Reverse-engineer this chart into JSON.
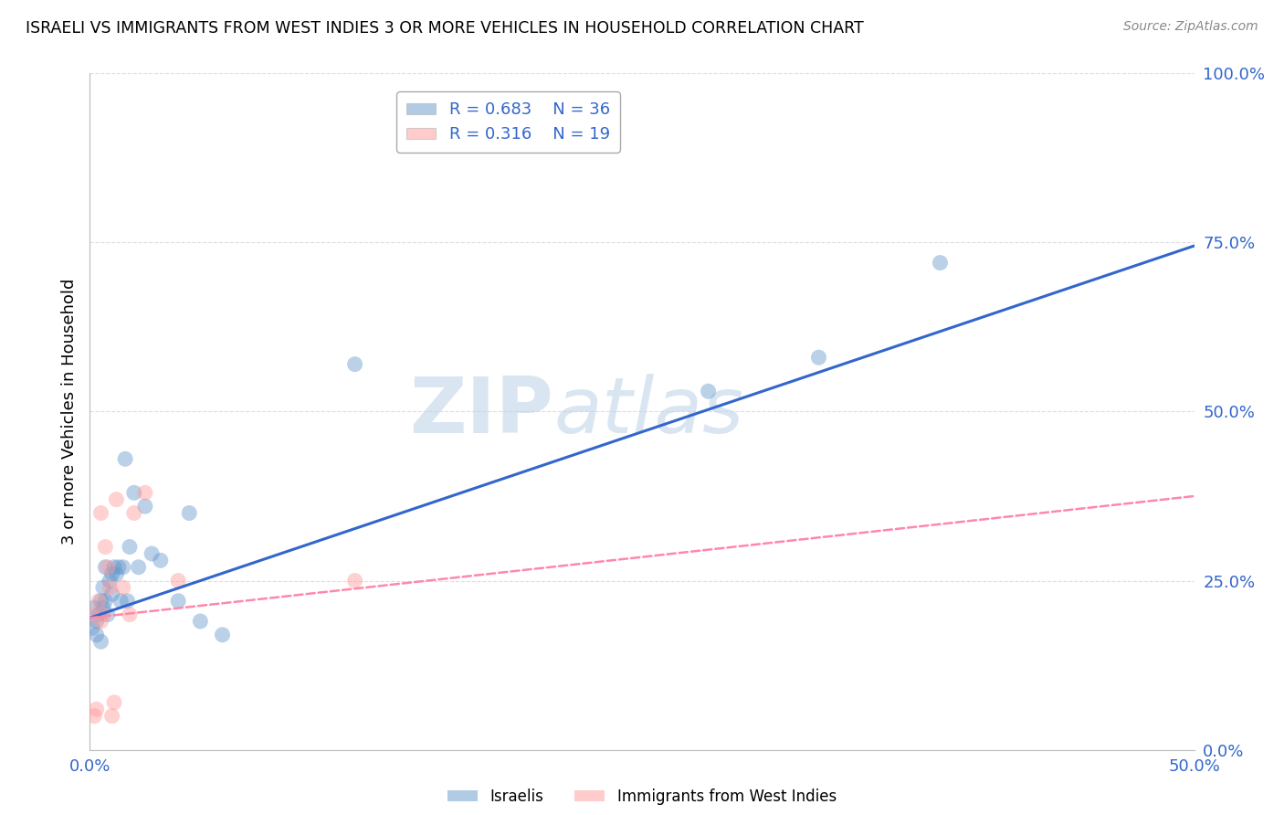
{
  "title": "ISRAELI VS IMMIGRANTS FROM WEST INDIES 3 OR MORE VEHICLES IN HOUSEHOLD CORRELATION CHART",
  "source": "Source: ZipAtlas.com",
  "ylabel": "3 or more Vehicles in Household",
  "xlim": [
    0.0,
    0.5
  ],
  "ylim": [
    0.0,
    1.0
  ],
  "xtick_labels": [
    "0.0%",
    "50.0%"
  ],
  "ytick_labels": [
    "0.0%",
    "25.0%",
    "50.0%",
    "75.0%",
    "100.0%"
  ],
  "ytick_values": [
    0.0,
    0.25,
    0.5,
    0.75,
    1.0
  ],
  "xtick_values": [
    0.0,
    0.5
  ],
  "legend1_label": "Israelis",
  "legend2_label": "Immigrants from West Indies",
  "R_israeli": 0.683,
  "N_israeli": 36,
  "R_westindies": 0.316,
  "N_westindies": 19,
  "israeli_color": "#6699CC",
  "westindies_color": "#FF9999",
  "trend_israeli_color": "#3366CC",
  "trend_westindies_color": "#FF88AA",
  "watermark_text": "ZIP",
  "watermark_text2": "atlas",
  "israeli_x": [
    0.001,
    0.002,
    0.003,
    0.003,
    0.004,
    0.005,
    0.005,
    0.006,
    0.006,
    0.007,
    0.007,
    0.008,
    0.009,
    0.01,
    0.01,
    0.011,
    0.012,
    0.013,
    0.014,
    0.015,
    0.016,
    0.017,
    0.018,
    0.02,
    0.022,
    0.025,
    0.028,
    0.032,
    0.04,
    0.045,
    0.05,
    0.06,
    0.12,
    0.28,
    0.33,
    0.385
  ],
  "israeli_y": [
    0.18,
    0.21,
    0.17,
    0.19,
    0.2,
    0.22,
    0.16,
    0.21,
    0.24,
    0.22,
    0.27,
    0.2,
    0.25,
    0.23,
    0.26,
    0.27,
    0.26,
    0.27,
    0.22,
    0.27,
    0.43,
    0.22,
    0.3,
    0.38,
    0.27,
    0.36,
    0.29,
    0.28,
    0.22,
    0.35,
    0.19,
    0.17,
    0.57,
    0.53,
    0.58,
    0.72
  ],
  "westindies_x": [
    0.001,
    0.002,
    0.003,
    0.004,
    0.005,
    0.005,
    0.006,
    0.007,
    0.008,
    0.009,
    0.01,
    0.011,
    0.012,
    0.015,
    0.018,
    0.02,
    0.025,
    0.04,
    0.12
  ],
  "westindies_y": [
    0.2,
    0.05,
    0.06,
    0.22,
    0.19,
    0.35,
    0.2,
    0.3,
    0.27,
    0.24,
    0.05,
    0.07,
    0.37,
    0.24,
    0.2,
    0.35,
    0.38,
    0.25,
    0.25
  ],
  "trend_israeli_x0": 0.0,
  "trend_israeli_y0": 0.195,
  "trend_israeli_x1": 0.5,
  "trend_israeli_y1": 0.745,
  "trend_wi_x0": 0.0,
  "trend_wi_y0": 0.195,
  "trend_wi_x1": 0.5,
  "trend_wi_y1": 0.375,
  "grid_color": "#DDDDDD",
  "background_color": "#FFFFFF"
}
